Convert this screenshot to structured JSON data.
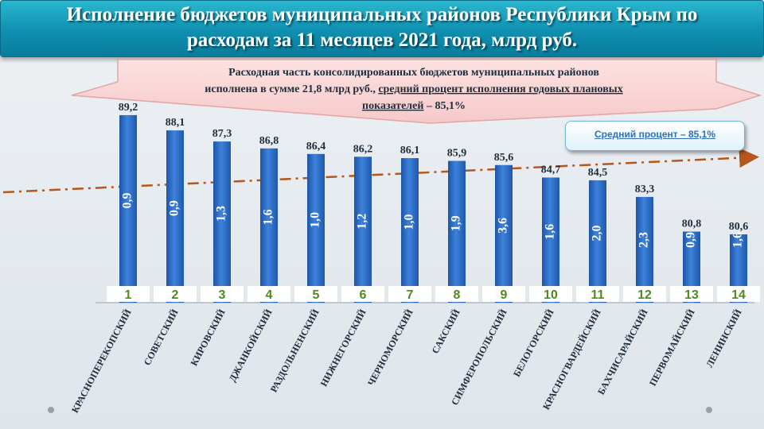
{
  "header": {
    "title_line1": "Исполнение бюджетов муниципальных районов Республики Крым по",
    "title_line2": "расходам за 11 месяцев 2021 года, млрд руб."
  },
  "banner": {
    "line1": "Расходная часть консолидированных бюджетов муниципальных районов",
    "line2_plain": "исполнена в сумме 21,8 млрд руб., ",
    "line2_underlined": "средний процент исполнения годовых плановых",
    "line3_underlined": "показателей",
    "line3_plain": " – 85,1%"
  },
  "callout": {
    "text": "Средний процент – 85,1%"
  },
  "chart_data": {
    "type": "bar",
    "categories": [
      "КРАСНОПЕРЕКОПСКИЙ",
      "СОВЕТСКИЙ",
      "КИРОВСКИЙ",
      "ДЖАНКОЙСКИЙ",
      "РАЗДОЛЬНЕНСКИЙ",
      "НИЖНЕГОРСКИЙ",
      "ЧЕРНОМОРСКИЙ",
      "САКСКИЙ",
      "СИМФЕРОПОЛЬСКИЙ",
      "БЕЛОГОРСКИЙ",
      "КРАСНОГВАРДЕЙСКИЙ",
      "БАХЧИСАРАЙСКИЙ",
      "ПЕРВОМАЙСКИЙ",
      "ЛЕНИНСКИЙ"
    ],
    "values": [
      89.2,
      88.1,
      87.3,
      86.8,
      86.4,
      86.2,
      86.1,
      85.9,
      85.6,
      84.7,
      84.5,
      83.3,
      80.8,
      80.6
    ],
    "value_labels": [
      "89,2",
      "88,1",
      "87,3",
      "86,8",
      "86,4",
      "86,2",
      "86,1",
      "85,9",
      "85,6",
      "84,7",
      "84,5",
      "83,3",
      "80,8",
      "80,6"
    ],
    "amounts": [
      "0,9",
      "0,9",
      "1,3",
      "1,6",
      "1,0",
      "1,2",
      "1,0",
      "1,9",
      "3,6",
      "1,6",
      "2,0",
      "2,3",
      "0,9",
      "1,6"
    ],
    "ranks": [
      "1",
      "2",
      "3",
      "4",
      "5",
      "6",
      "7",
      "8",
      "9",
      "10",
      "11",
      "12",
      "13",
      "14"
    ],
    "average": 85.1,
    "colors": {
      "bar": "#2b6ac4",
      "rank": "#4e8a1e",
      "trend": "#b5561c",
      "label": "#1f2d3d"
    }
  }
}
